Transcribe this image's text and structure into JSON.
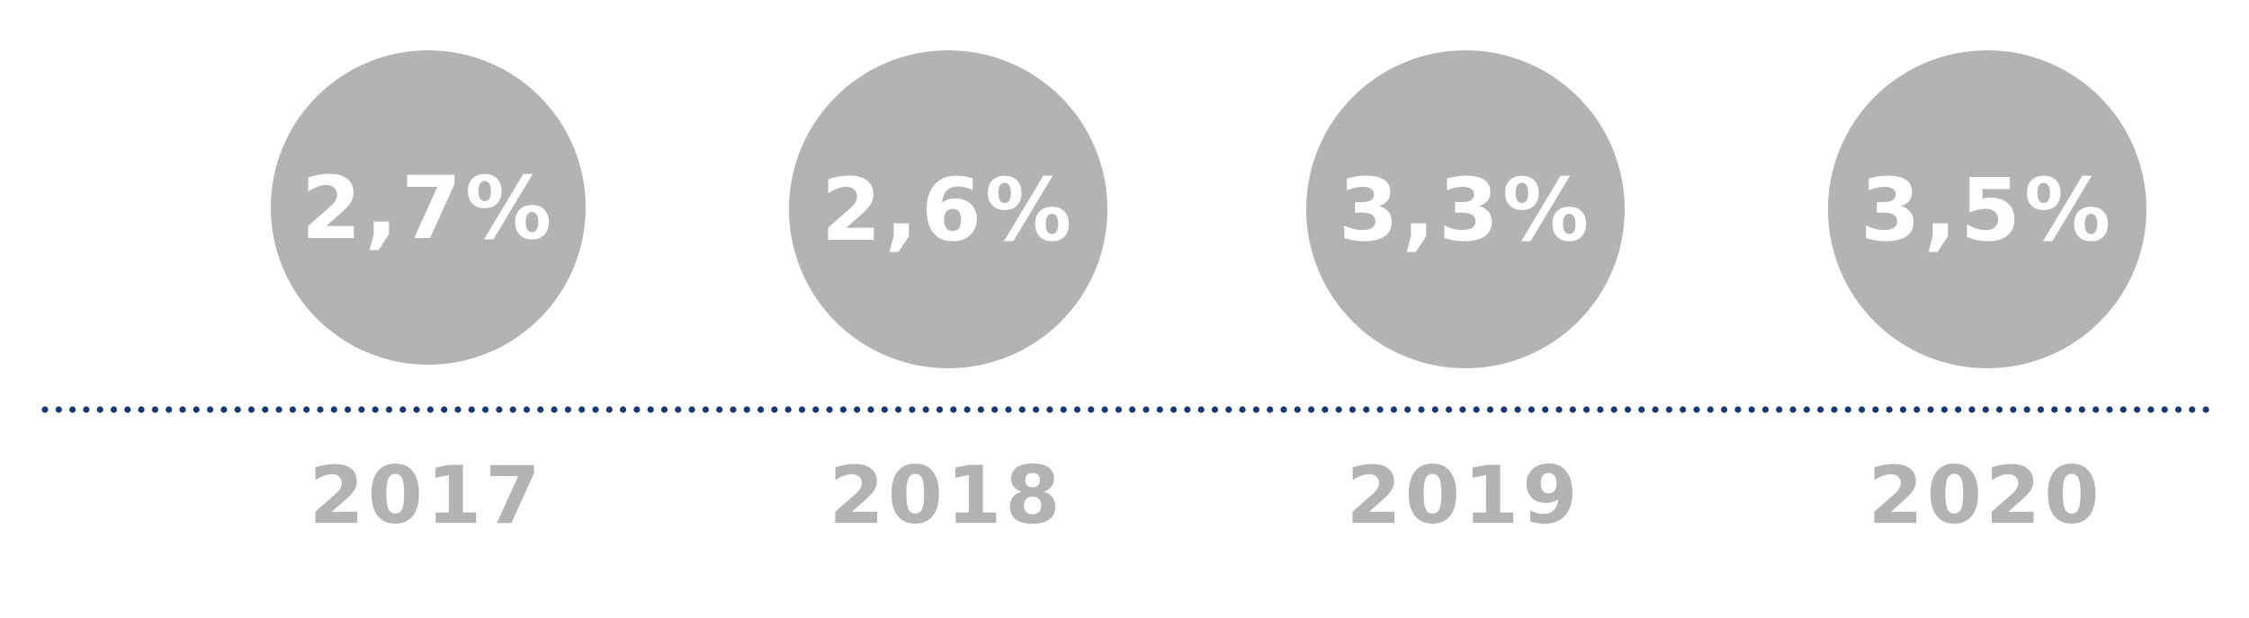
{
  "chart_data": {
    "type": "timeline",
    "categories": [
      "2017",
      "2018",
      "2019",
      "2020"
    ],
    "values": [
      "2,7%",
      "2,6%",
      "3,3%",
      "3,5%"
    ],
    "colors": {
      "circle": "#b3b3b3",
      "value_text": "#ffffff",
      "year_text": "#b3b3b3",
      "dotted_line": "#173a73"
    }
  }
}
